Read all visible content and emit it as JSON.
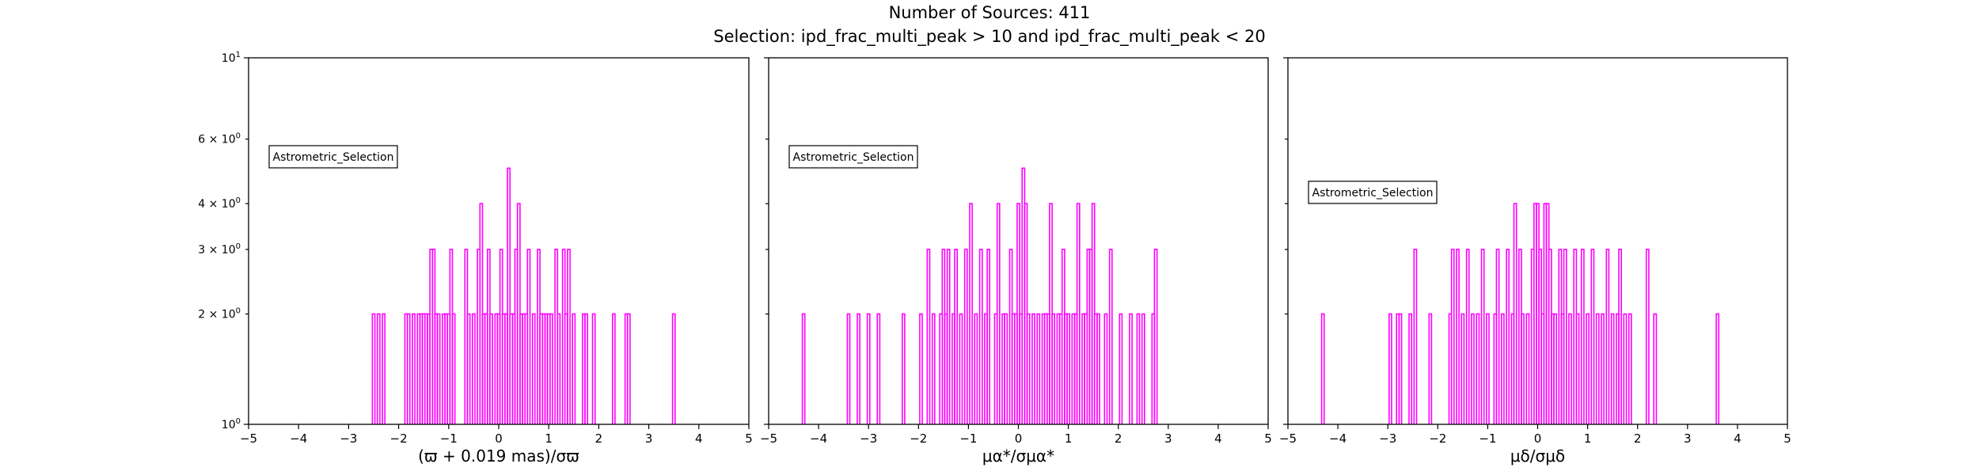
{
  "figure": {
    "title": "Number of Sources: 411",
    "subtitle": "Selection: ipd_frac_multi_peak > 10 and ipd_frac_multi_peak < 20"
  },
  "colors": {
    "bars": "#ff00ff",
    "axes": "#000000",
    "background": "#ffffff"
  },
  "chart_data": [
    {
      "type": "histogram",
      "title": "",
      "xlabel": "(ϖ + 0.019 mas)/σϖ",
      "ylabel": "",
      "xlim": [
        -5,
        5
      ],
      "ylim": [
        1,
        10
      ],
      "yscale": "log",
      "x_ticks": [
        "−5",
        "−4",
        "−3",
        "−2",
        "−1",
        "0",
        "1",
        "2",
        "3",
        "4",
        "5"
      ],
      "y_ticks": [
        {
          "value": 1,
          "base": "10",
          "exp": "0"
        },
        {
          "value": 2,
          "base": "2 × 10",
          "exp": "0"
        },
        {
          "value": 3,
          "base": "3 × 10",
          "exp": "0"
        },
        {
          "value": 4,
          "base": "4 × 10",
          "exp": "0"
        },
        {
          "value": 6,
          "base": "6 × 10",
          "exp": "0"
        },
        {
          "value": 10,
          "base": "10",
          "exp": "1"
        }
      ],
      "legend": "Astrometric_Selection",
      "legend_position": "upper-left",
      "bins": [
        {
          "x": -2.5,
          "count": 2
        },
        {
          "x": -2.4,
          "count": 2
        },
        {
          "x": -2.3,
          "count": 2
        },
        {
          "x": -1.85,
          "count": 2
        },
        {
          "x": -1.8,
          "count": 2
        },
        {
          "x": -1.7,
          "count": 2
        },
        {
          "x": -1.6,
          "count": 2
        },
        {
          "x": -1.55,
          "count": 2
        },
        {
          "x": -1.5,
          "count": 2
        },
        {
          "x": -1.45,
          "count": 2
        },
        {
          "x": -1.4,
          "count": 2
        },
        {
          "x": -1.35,
          "count": 3
        },
        {
          "x": -1.3,
          "count": 3
        },
        {
          "x": -1.25,
          "count": 2
        },
        {
          "x": -1.2,
          "count": 2
        },
        {
          "x": -1.1,
          "count": 2
        },
        {
          "x": -1.05,
          "count": 2
        },
        {
          "x": -1.0,
          "count": 2
        },
        {
          "x": -0.95,
          "count": 3
        },
        {
          "x": -0.9,
          "count": 2
        },
        {
          "x": -0.65,
          "count": 3
        },
        {
          "x": -0.6,
          "count": 2
        },
        {
          "x": -0.5,
          "count": 2
        },
        {
          "x": -0.4,
          "count": 3
        },
        {
          "x": -0.35,
          "count": 4
        },
        {
          "x": -0.3,
          "count": 2
        },
        {
          "x": -0.25,
          "count": 2
        },
        {
          "x": -0.2,
          "count": 3
        },
        {
          "x": -0.15,
          "count": 2
        },
        {
          "x": -0.05,
          "count": 2
        },
        {
          "x": 0.0,
          "count": 2
        },
        {
          "x": 0.05,
          "count": 3
        },
        {
          "x": 0.1,
          "count": 2
        },
        {
          "x": 0.15,
          "count": 2
        },
        {
          "x": 0.2,
          "count": 5
        },
        {
          "x": 0.25,
          "count": 2
        },
        {
          "x": 0.3,
          "count": 2
        },
        {
          "x": 0.35,
          "count": 3
        },
        {
          "x": 0.4,
          "count": 4
        },
        {
          "x": 0.45,
          "count": 2
        },
        {
          "x": 0.5,
          "count": 2
        },
        {
          "x": 0.55,
          "count": 2
        },
        {
          "x": 0.6,
          "count": 3
        },
        {
          "x": 0.7,
          "count": 2
        },
        {
          "x": 0.8,
          "count": 3
        },
        {
          "x": 0.85,
          "count": 2
        },
        {
          "x": 0.9,
          "count": 2
        },
        {
          "x": 0.95,
          "count": 2
        },
        {
          "x": 1.0,
          "count": 2
        },
        {
          "x": 1.05,
          "count": 2
        },
        {
          "x": 1.15,
          "count": 3
        },
        {
          "x": 1.2,
          "count": 2
        },
        {
          "x": 1.3,
          "count": 3
        },
        {
          "x": 1.35,
          "count": 2
        },
        {
          "x": 1.4,
          "count": 3
        },
        {
          "x": 1.5,
          "count": 2
        },
        {
          "x": 1.7,
          "count": 2
        },
        {
          "x": 1.75,
          "count": 2
        },
        {
          "x": 1.9,
          "count": 2
        },
        {
          "x": 2.3,
          "count": 2
        },
        {
          "x": 2.55,
          "count": 2
        },
        {
          "x": 2.6,
          "count": 2
        },
        {
          "x": 3.5,
          "count": 2
        }
      ]
    },
    {
      "type": "histogram",
      "title": "",
      "xlabel": "μα*/σμα*",
      "ylabel": "",
      "xlim": [
        -5,
        5
      ],
      "ylim": [
        1,
        10
      ],
      "yscale": "log",
      "x_ticks": [
        "−5",
        "−4",
        "−3",
        "−2",
        "−1",
        "0",
        "1",
        "2",
        "3",
        "4",
        "5"
      ],
      "legend": "Astrometric_Selection",
      "legend_position": "upper-left",
      "bins": [
        {
          "x": -4.3,
          "count": 2
        },
        {
          "x": -3.4,
          "count": 2
        },
        {
          "x": -3.2,
          "count": 2
        },
        {
          "x": -3.0,
          "count": 2
        },
        {
          "x": -2.8,
          "count": 2
        },
        {
          "x": -2.3,
          "count": 2
        },
        {
          "x": -1.95,
          "count": 2
        },
        {
          "x": -1.8,
          "count": 3
        },
        {
          "x": -1.7,
          "count": 2
        },
        {
          "x": -1.55,
          "count": 2
        },
        {
          "x": -1.5,
          "count": 3
        },
        {
          "x": -1.45,
          "count": 2
        },
        {
          "x": -1.4,
          "count": 3
        },
        {
          "x": -1.3,
          "count": 2
        },
        {
          "x": -1.25,
          "count": 3
        },
        {
          "x": -1.15,
          "count": 2
        },
        {
          "x": -1.05,
          "count": 3
        },
        {
          "x": -0.95,
          "count": 4
        },
        {
          "x": -0.85,
          "count": 2
        },
        {
          "x": -0.75,
          "count": 3
        },
        {
          "x": -0.65,
          "count": 2
        },
        {
          "x": -0.6,
          "count": 3
        },
        {
          "x": -0.45,
          "count": 2
        },
        {
          "x": -0.4,
          "count": 4
        },
        {
          "x": -0.3,
          "count": 2
        },
        {
          "x": -0.25,
          "count": 2
        },
        {
          "x": -0.15,
          "count": 3
        },
        {
          "x": -0.1,
          "count": 2
        },
        {
          "x": -0.05,
          "count": 2
        },
        {
          "x": 0.0,
          "count": 4
        },
        {
          "x": 0.05,
          "count": 2
        },
        {
          "x": 0.1,
          "count": 5
        },
        {
          "x": 0.15,
          "count": 4
        },
        {
          "x": 0.2,
          "count": 2
        },
        {
          "x": 0.3,
          "count": 2
        },
        {
          "x": 0.4,
          "count": 2
        },
        {
          "x": 0.5,
          "count": 2
        },
        {
          "x": 0.55,
          "count": 2
        },
        {
          "x": 0.6,
          "count": 2
        },
        {
          "x": 0.65,
          "count": 4
        },
        {
          "x": 0.7,
          "count": 2
        },
        {
          "x": 0.8,
          "count": 2
        },
        {
          "x": 0.85,
          "count": 2
        },
        {
          "x": 0.9,
          "count": 3
        },
        {
          "x": 0.95,
          "count": 2
        },
        {
          "x": 1.0,
          "count": 2
        },
        {
          "x": 1.1,
          "count": 2
        },
        {
          "x": 1.15,
          "count": 2
        },
        {
          "x": 1.2,
          "count": 4
        },
        {
          "x": 1.3,
          "count": 2
        },
        {
          "x": 1.35,
          "count": 2
        },
        {
          "x": 1.4,
          "count": 3
        },
        {
          "x": 1.45,
          "count": 3
        },
        {
          "x": 1.5,
          "count": 4
        },
        {
          "x": 1.55,
          "count": 2
        },
        {
          "x": 1.6,
          "count": 2
        },
        {
          "x": 1.75,
          "count": 2
        },
        {
          "x": 1.85,
          "count": 3
        },
        {
          "x": 2.05,
          "count": 2
        },
        {
          "x": 2.25,
          "count": 2
        },
        {
          "x": 2.4,
          "count": 2
        },
        {
          "x": 2.5,
          "count": 2
        },
        {
          "x": 2.7,
          "count": 2
        },
        {
          "x": 2.75,
          "count": 3
        }
      ]
    },
    {
      "type": "histogram",
      "title": "",
      "xlabel": "μδ/σμδ",
      "ylabel": "",
      "xlim": [
        -5,
        5
      ],
      "ylim": [
        1,
        10
      ],
      "yscale": "log",
      "x_ticks": [
        "−5",
        "−4",
        "−3",
        "−2",
        "−1",
        "0",
        "1",
        "2",
        "3",
        "4",
        "5"
      ],
      "legend": "Astrometric_Selection",
      "legend_position": "upper-left",
      "bins": [
        {
          "x": -4.3,
          "count": 2
        },
        {
          "x": -2.95,
          "count": 2
        },
        {
          "x": -2.8,
          "count": 2
        },
        {
          "x": -2.75,
          "count": 2
        },
        {
          "x": -2.55,
          "count": 2
        },
        {
          "x": -2.45,
          "count": 3
        },
        {
          "x": -2.15,
          "count": 2
        },
        {
          "x": -1.75,
          "count": 2
        },
        {
          "x": -1.7,
          "count": 3
        },
        {
          "x": -1.6,
          "count": 3
        },
        {
          "x": -1.5,
          "count": 2
        },
        {
          "x": -1.4,
          "count": 3
        },
        {
          "x": -1.3,
          "count": 2
        },
        {
          "x": -1.2,
          "count": 2
        },
        {
          "x": -1.1,
          "count": 3
        },
        {
          "x": -1.0,
          "count": 2
        },
        {
          "x": -0.85,
          "count": 2
        },
        {
          "x": -0.8,
          "count": 3
        },
        {
          "x": -0.7,
          "count": 2
        },
        {
          "x": -0.6,
          "count": 3
        },
        {
          "x": -0.5,
          "count": 2
        },
        {
          "x": -0.45,
          "count": 4
        },
        {
          "x": -0.35,
          "count": 3
        },
        {
          "x": -0.3,
          "count": 2
        },
        {
          "x": -0.2,
          "count": 2
        },
        {
          "x": -0.1,
          "count": 3
        },
        {
          "x": -0.05,
          "count": 4
        },
        {
          "x": 0.0,
          "count": 4
        },
        {
          "x": 0.05,
          "count": 3
        },
        {
          "x": 0.1,
          "count": 2
        },
        {
          "x": 0.15,
          "count": 4
        },
        {
          "x": 0.2,
          "count": 4
        },
        {
          "x": 0.25,
          "count": 3
        },
        {
          "x": 0.3,
          "count": 2
        },
        {
          "x": 0.35,
          "count": 2
        },
        {
          "x": 0.45,
          "count": 3
        },
        {
          "x": 0.5,
          "count": 2
        },
        {
          "x": 0.55,
          "count": 3
        },
        {
          "x": 0.65,
          "count": 2
        },
        {
          "x": 0.75,
          "count": 3
        },
        {
          "x": 0.8,
          "count": 2
        },
        {
          "x": 0.9,
          "count": 3
        },
        {
          "x": 1.0,
          "count": 2
        },
        {
          "x": 1.1,
          "count": 3
        },
        {
          "x": 1.2,
          "count": 2
        },
        {
          "x": 1.3,
          "count": 2
        },
        {
          "x": 1.4,
          "count": 3
        },
        {
          "x": 1.5,
          "count": 2
        },
        {
          "x": 1.6,
          "count": 2
        },
        {
          "x": 1.65,
          "count": 3
        },
        {
          "x": 1.75,
          "count": 2
        },
        {
          "x": 1.85,
          "count": 2
        },
        {
          "x": 2.2,
          "count": 3
        },
        {
          "x": 2.35,
          "count": 2
        },
        {
          "x": 3.6,
          "count": 2
        }
      ]
    }
  ]
}
